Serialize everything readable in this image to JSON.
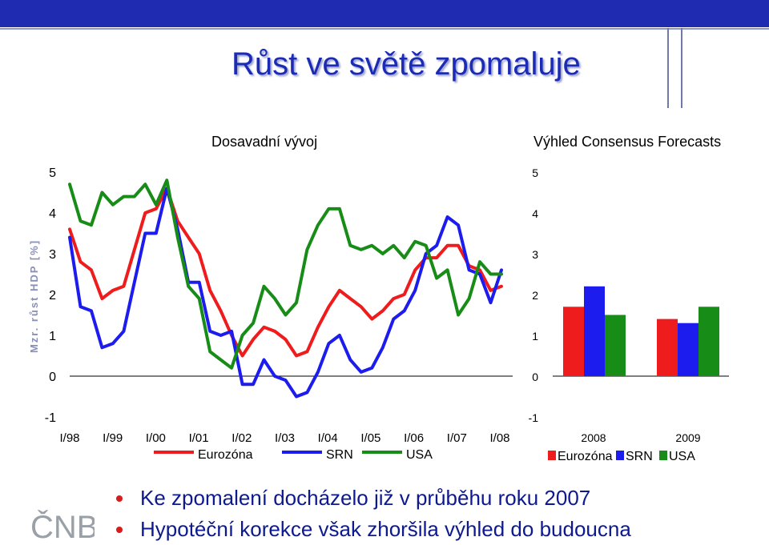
{
  "slide": {
    "title": "Růst ve světě zpomaluje",
    "bullets": [
      "Ke zpomalení docházelo již v průběhu roku 2007",
      "Hypotéční korekce však zhoršila výhled do budoucna"
    ],
    "logo": "ČNB"
  },
  "colors": {
    "eurozona": "#ee1c1c",
    "srn": "#1c1cee",
    "usa": "#178c17",
    "title": "#1b2bb5",
    "topbar": "#1f2bb0"
  },
  "chart_data": [
    {
      "type": "line",
      "title": "Dosavadní vývoj",
      "ylabel": "Mzr. růst HDP [%]",
      "ylim": [
        -1,
        5
      ],
      "yticks": [
        -1,
        0,
        1,
        2,
        3,
        4,
        5
      ],
      "x_ticklabels": [
        "I/98",
        "I/99",
        "I/00",
        "I/01",
        "I/02",
        "I/03",
        "I/04",
        "I/05",
        "I/06",
        "I/07",
        "I/08"
      ],
      "legend_position": "bottom",
      "series": [
        {
          "name": "Eurozóna",
          "color": "#ee1c1c",
          "values": [
            3.6,
            2.8,
            2.6,
            1.9,
            2.1,
            2.2,
            3.1,
            4.0,
            4.1,
            4.6,
            3.8,
            3.4,
            3.0,
            2.1,
            1.6,
            1.0,
            0.5,
            0.9,
            1.2,
            1.1,
            0.9,
            0.5,
            0.6,
            1.2,
            1.7,
            2.1,
            1.9,
            1.7,
            1.4,
            1.6,
            1.9,
            2.0,
            2.6,
            2.9,
            2.9,
            3.2,
            3.2,
            2.7,
            2.6,
            2.1,
            2.2
          ]
        },
        {
          "name": "SRN",
          "color": "#1c1cee",
          "values": [
            3.4,
            1.7,
            1.6,
            0.7,
            0.8,
            1.1,
            2.3,
            3.5,
            3.5,
            4.6,
            3.6,
            2.3,
            2.3,
            1.1,
            1.0,
            1.1,
            -0.2,
            -0.2,
            0.4,
            0.0,
            -0.1,
            -0.5,
            -0.4,
            0.1,
            0.8,
            1.0,
            0.4,
            0.1,
            0.2,
            0.7,
            1.4,
            1.6,
            2.1,
            3.0,
            3.2,
            3.9,
            3.7,
            2.6,
            2.5,
            1.8,
            2.6
          ]
        },
        {
          "name": "USA",
          "color": "#178c17",
          "values": [
            4.7,
            3.8,
            3.7,
            4.5,
            4.2,
            4.4,
            4.4,
            4.7,
            4.2,
            4.8,
            3.4,
            2.2,
            1.9,
            0.6,
            0.4,
            0.2,
            1.0,
            1.3,
            2.2,
            1.9,
            1.5,
            1.8,
            3.1,
            3.7,
            4.1,
            4.1,
            3.2,
            3.1,
            3.2,
            3.0,
            3.2,
            2.9,
            3.3,
            3.2,
            2.4,
            2.6,
            1.5,
            1.9,
            2.8,
            2.5,
            2.5
          ]
        }
      ]
    },
    {
      "type": "bar",
      "title": "Výhled Consensus Forecasts",
      "categories": [
        "2008",
        "2009"
      ],
      "ylim": [
        -1,
        5
      ],
      "yticks": [
        -1,
        0,
        1,
        2,
        3,
        4,
        5
      ],
      "legend_position": "bottom",
      "series": [
        {
          "name": "Eurozóna",
          "color": "#ee1c1c",
          "values": [
            1.7,
            1.4
          ]
        },
        {
          "name": "SRN",
          "color": "#1c1cee",
          "values": [
            2.2,
            1.3
          ]
        },
        {
          "name": "USA",
          "color": "#178c17",
          "values": [
            1.5,
            1.7
          ]
        }
      ]
    }
  ]
}
